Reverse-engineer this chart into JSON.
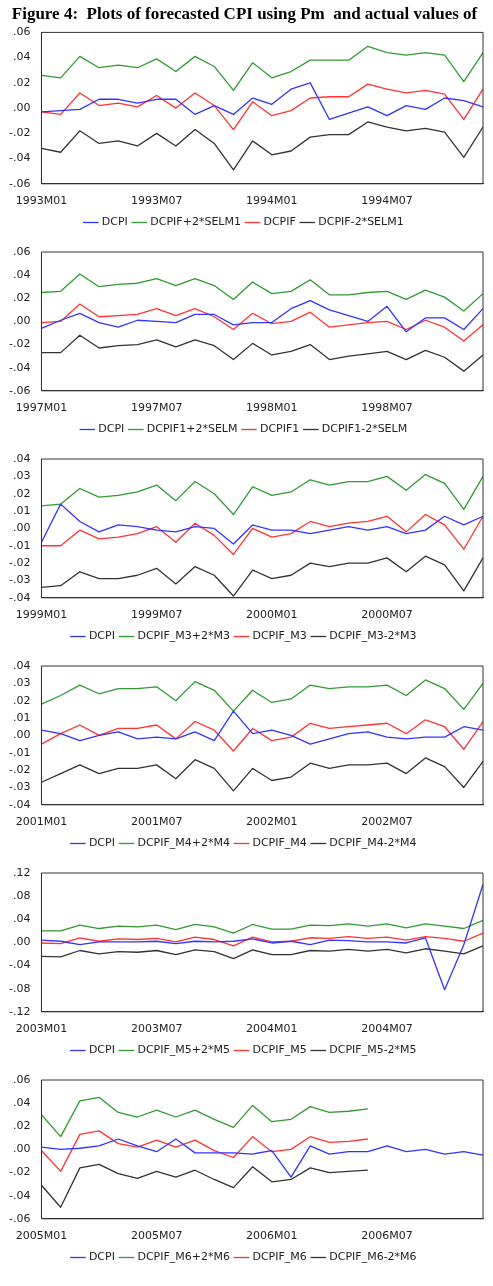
{
  "chart_data": [
    {
      "type": "line",
      "title": "Figure 4:  Plots of forecasted CPI using Pm  and actual values of",
      "categories": [
        "1993M01",
        null,
        null,
        null,
        null,
        null,
        "1993M07",
        null,
        null,
        null,
        null,
        null,
        "1994M01",
        null,
        null,
        null,
        null,
        null,
        "1994M07",
        null,
        null,
        null,
        null,
        null
      ],
      "ylim": [
        -0.06,
        0.06
      ],
      "yticks": [
        {
          "value": -0.06,
          "label": "-.06"
        },
        {
          "value": -0.04,
          "label": "-.04"
        },
        {
          "value": -0.02,
          "label": "-.02"
        },
        {
          "value": 0,
          "label": ".00"
        },
        {
          "value": 0.02,
          "label": ".02"
        },
        {
          "value": 0.04,
          "label": ".04"
        },
        {
          "value": 0.06,
          "label": ".06"
        }
      ],
      "legend": "bottom",
      "marker": "none",
      "series": [
        {
          "name": "DCPI",
          "color": "#3333ff",
          "values": [
            -0.003,
            -0.002,
            -0.001,
            0.007,
            0.007,
            0.004,
            0.007,
            0.007,
            -0.005,
            0.002,
            -0.005,
            0.008,
            0.003,
            0.015,
            0.02,
            -0.009,
            -0.004,
            0.001,
            -0.006,
            0.002,
            -0.001,
            0.008,
            0.006,
            0.001
          ]
        },
        {
          "name": "DCPIF+2*SELM1",
          "color": "#339933",
          "values": [
            0.026,
            0.024,
            0.041,
            0.032,
            0.034,
            0.032,
            0.039,
            0.029,
            0.041,
            0.033,
            0.014,
            0.036,
            0.024,
            0.029,
            0.038,
            0.038,
            0.038,
            0.049,
            0.044,
            0.042,
            0.044,
            0.042,
            0.021,
            0.044
          ]
        },
        {
          "name": "DCPIF",
          "color": "#ff3333",
          "values": [
            -0.003,
            -0.005,
            0.012,
            0.002,
            0.004,
            0.001,
            0.01,
            0.0,
            0.012,
            0.002,
            -0.017,
            0.005,
            -0.006,
            -0.002,
            0.008,
            0.009,
            0.009,
            0.019,
            0.015,
            0.012,
            0.014,
            0.011,
            -0.009,
            0.015
          ]
        },
        {
          "name": "DCPIF-2*SELM1",
          "color": "#333333",
          "values": [
            -0.032,
            -0.035,
            -0.018,
            -0.028,
            -0.026,
            -0.03,
            -0.02,
            -0.03,
            -0.017,
            -0.028,
            -0.049,
            -0.026,
            -0.037,
            -0.034,
            -0.023,
            -0.021,
            -0.021,
            -0.011,
            -0.015,
            -0.018,
            -0.016,
            -0.019,
            -0.039,
            -0.015
          ]
        }
      ]
    },
    {
      "type": "line",
      "categories": [
        "1997M01",
        null,
        null,
        null,
        null,
        null,
        "1997M07",
        null,
        null,
        null,
        null,
        null,
        "1998M01",
        null,
        null,
        null,
        null,
        null,
        "1998M07",
        null,
        null,
        null,
        null,
        null
      ],
      "ylim": [
        -0.06,
        0.06
      ],
      "yticks": [
        {
          "value": -0.06,
          "label": "-.06"
        },
        {
          "value": -0.04,
          "label": "-.04"
        },
        {
          "value": -0.02,
          "label": "-.02"
        },
        {
          "value": 0,
          "label": ".00"
        },
        {
          "value": 0.02,
          "label": ".02"
        },
        {
          "value": 0.04,
          "label": ".04"
        },
        {
          "value": 0.06,
          "label": ".06"
        }
      ],
      "legend": "bottom",
      "marker": "none",
      "series": [
        {
          "name": "DCPI",
          "color": "#3333ff",
          "values": [
            -0.006,
            0.001,
            0.007,
            -0.001,
            -0.005,
            0.001,
            0.0,
            -0.001,
            0.006,
            0.006,
            -0.003,
            -0.001,
            -0.001,
            0.011,
            0.018,
            0.01,
            0.005,
            0.0,
            0.013,
            -0.009,
            0.003,
            0.003,
            -0.007,
            0.011
          ]
        },
        {
          "name": "DCPIF1+2*SELM",
          "color": "#339933",
          "values": [
            0.025,
            0.026,
            0.041,
            0.03,
            0.032,
            0.033,
            0.037,
            0.031,
            0.037,
            0.031,
            0.019,
            0.034,
            0.024,
            0.026,
            0.036,
            0.023,
            0.023,
            0.025,
            0.026,
            0.019,
            0.027,
            0.021,
            0.009,
            0.024
          ]
        },
        {
          "name": "DCPIF1",
          "color": "#ff3333",
          "values": [
            -0.001,
            0.0,
            0.015,
            0.004,
            0.005,
            0.006,
            0.011,
            0.005,
            0.011,
            0.004,
            -0.007,
            0.007,
            -0.002,
            0.0,
            0.008,
            -0.005,
            -0.003,
            -0.001,
            0.0,
            -0.007,
            0.001,
            -0.005,
            -0.017,
            -0.003
          ]
        },
        {
          "name": "DCPIF1-2*SELM",
          "color": "#333333",
          "values": [
            -0.027,
            -0.027,
            -0.012,
            -0.023,
            -0.021,
            -0.02,
            -0.016,
            -0.022,
            -0.016,
            -0.021,
            -0.033,
            -0.019,
            -0.029,
            -0.026,
            -0.02,
            -0.033,
            -0.03,
            -0.028,
            -0.026,
            -0.033,
            -0.025,
            -0.031,
            -0.043,
            -0.029
          ]
        }
      ]
    },
    {
      "type": "line",
      "categories": [
        "1999M01",
        null,
        null,
        null,
        null,
        null,
        "1999M07",
        null,
        null,
        null,
        null,
        null,
        "2000M01",
        null,
        null,
        null,
        null,
        null,
        "2000M07",
        null,
        null,
        null,
        null,
        null
      ],
      "ylim": [
        -0.04,
        0.04
      ],
      "yticks": [
        {
          "value": -0.04,
          "label": "-.04"
        },
        {
          "value": -0.03,
          "label": "-.03"
        },
        {
          "value": -0.02,
          "label": "-.02"
        },
        {
          "value": -0.01,
          "label": "-.01"
        },
        {
          "value": 0,
          "label": ".00"
        },
        {
          "value": 0.01,
          "label": ".01"
        },
        {
          "value": 0.02,
          "label": ".02"
        },
        {
          "value": 0.03,
          "label": ".03"
        },
        {
          "value": 0.04,
          "label": ".04"
        }
      ],
      "legend": "bottom",
      "marker": "none",
      "series": [
        {
          "name": "DCPI",
          "color": "#3333ff",
          "values": [
            -0.008,
            0.014,
            0.004,
            -0.002,
            0.002,
            0.001,
            -0.001,
            -0.002,
            0.001,
            0.0,
            -0.009,
            0.002,
            -0.001,
            -0.001,
            -0.003,
            -0.001,
            0.001,
            -0.001,
            0.001,
            -0.003,
            -0.001,
            0.007,
            0.002,
            0.007
          ]
        },
        {
          "name": "DCPIF_M3+2*M3",
          "color": "#339933",
          "values": [
            0.013,
            0.014,
            0.023,
            0.018,
            0.019,
            0.021,
            0.025,
            0.016,
            0.027,
            0.02,
            0.008,
            0.024,
            0.019,
            0.021,
            0.028,
            0.025,
            0.027,
            0.027,
            0.03,
            0.022,
            0.031,
            0.026,
            0.011,
            0.03
          ]
        },
        {
          "name": "DCPIF_M3",
          "color": "#ff3333",
          "values": [
            -0.01,
            -0.01,
            -0.001,
            -0.006,
            -0.005,
            -0.003,
            0.001,
            -0.008,
            0.003,
            -0.004,
            -0.015,
            0.0,
            -0.005,
            -0.003,
            0.004,
            0.001,
            0.003,
            0.004,
            0.007,
            -0.002,
            0.008,
            0.002,
            -0.012,
            0.007
          ]
        },
        {
          "name": "DCPIF_M3-2*M3",
          "color": "#333333",
          "values": [
            -0.034,
            -0.033,
            -0.025,
            -0.029,
            -0.029,
            -0.027,
            -0.023,
            -0.032,
            -0.022,
            -0.027,
            -0.039,
            -0.024,
            -0.029,
            -0.027,
            -0.02,
            -0.022,
            -0.02,
            -0.02,
            -0.017,
            -0.025,
            -0.016,
            -0.021,
            -0.036,
            -0.017
          ]
        }
      ]
    },
    {
      "type": "line",
      "categories": [
        "2001M01",
        null,
        null,
        null,
        null,
        null,
        "2001M07",
        null,
        null,
        null,
        null,
        null,
        "2002M01",
        null,
        null,
        null,
        null,
        null,
        "2002M07",
        null,
        null,
        null,
        null,
        null
      ],
      "ylim": [
        -0.04,
        0.04
      ],
      "yticks": [
        {
          "value": -0.04,
          "label": "-.04"
        },
        {
          "value": -0.03,
          "label": "-.03"
        },
        {
          "value": -0.02,
          "label": "-.02"
        },
        {
          "value": -0.01,
          "label": "-.01"
        },
        {
          "value": 0,
          "label": ".00"
        },
        {
          "value": 0.01,
          "label": ".01"
        },
        {
          "value": 0.02,
          "label": ".02"
        },
        {
          "value": 0.03,
          "label": ".03"
        },
        {
          "value": 0.04,
          "label": ".04"
        }
      ],
      "legend": "bottom",
      "marker": "none",
      "series": [
        {
          "name": "DCPI",
          "color": "#3333ff",
          "values": [
            0.003,
            0.001,
            -0.003,
            0.0,
            0.002,
            -0.002,
            -0.001,
            -0.002,
            0.002,
            -0.003,
            0.014,
            0.001,
            0.003,
            0.0,
            -0.005,
            -0.002,
            0.001,
            0.002,
            -0.001,
            -0.002,
            -0.001,
            -0.001,
            0.005,
            0.003
          ]
        },
        {
          "name": "DCPIF_M4+2*M4",
          "color": "#339933",
          "values": [
            0.018,
            0.023,
            0.029,
            0.024,
            0.027,
            0.027,
            0.028,
            0.02,
            0.031,
            0.026,
            0.014,
            0.026,
            0.019,
            0.021,
            0.029,
            0.027,
            0.028,
            0.028,
            0.029,
            0.023,
            0.032,
            0.027,
            0.015,
            0.03
          ]
        },
        {
          "name": "DCPIF_M4",
          "color": "#ff3333",
          "values": [
            -0.005,
            0.001,
            0.006,
            0.0,
            0.004,
            0.004,
            0.006,
            -0.002,
            0.008,
            0.003,
            -0.009,
            0.004,
            -0.003,
            -0.001,
            0.007,
            0.004,
            0.005,
            0.006,
            0.007,
            0.001,
            0.009,
            0.005,
            -0.008,
            0.008
          ]
        },
        {
          "name": "DCPIF_M4-2*M4",
          "color": "#333333",
          "values": [
            -0.027,
            -0.022,
            -0.017,
            -0.022,
            -0.019,
            -0.019,
            -0.017,
            -0.025,
            -0.014,
            -0.019,
            -0.032,
            -0.019,
            -0.026,
            -0.024,
            -0.016,
            -0.019,
            -0.017,
            -0.017,
            -0.016,
            -0.022,
            -0.013,
            -0.018,
            -0.03,
            -0.015
          ]
        }
      ]
    },
    {
      "type": "line",
      "categories": [
        "2003M01",
        null,
        null,
        null,
        null,
        null,
        "2003M07",
        null,
        null,
        null,
        null,
        null,
        "2004M01",
        null,
        null,
        null,
        null,
        null,
        "2004M07",
        null,
        null,
        null,
        null,
        null
      ],
      "ylim": [
        -0.12,
        0.12
      ],
      "yticks": [
        {
          "value": -0.12,
          "label": "-.12"
        },
        {
          "value": -0.08,
          "label": "-.08"
        },
        {
          "value": -0.04,
          "label": "-.04"
        },
        {
          "value": 0,
          "label": ".00"
        },
        {
          "value": 0.04,
          "label": ".04"
        },
        {
          "value": 0.08,
          "label": ".08"
        },
        {
          "value": 0.12,
          "label": ".12"
        }
      ],
      "legend": "bottom",
      "marker": "none",
      "series": [
        {
          "name": "DCPI",
          "color": "#3333ff",
          "values": [
            0.004,
            0.002,
            -0.004,
            0.001,
            0.001,
            0.001,
            0.002,
            -0.002,
            0.002,
            0.001,
            0.002,
            0.006,
            -0.001,
            0.002,
            -0.004,
            0.004,
            0.003,
            0.001,
            0.001,
            -0.001,
            0.008,
            -0.082,
            -0.004,
            0.1
          ]
        },
        {
          "name": "DCPIF_M5+2*M5",
          "color": "#339933",
          "values": [
            0.02,
            0.02,
            0.03,
            0.024,
            0.028,
            0.027,
            0.03,
            0.022,
            0.031,
            0.027,
            0.016,
            0.031,
            0.023,
            0.023,
            0.03,
            0.029,
            0.032,
            0.028,
            0.032,
            0.025,
            0.032,
            0.028,
            0.024,
            0.038
          ]
        },
        {
          "name": "DCPIF_M5",
          "color": "#ff3333",
          "values": [
            -0.001,
            -0.002,
            0.008,
            0.002,
            0.006,
            0.005,
            0.007,
            0.001,
            0.009,
            0.005,
            -0.006,
            0.009,
            0.001,
            0.002,
            0.008,
            0.007,
            0.01,
            0.007,
            0.009,
            0.004,
            0.01,
            0.007,
            0.002,
            0.016
          ]
        },
        {
          "name": "DCPIF_M5-2*M5",
          "color": "#333333",
          "values": [
            -0.024,
            -0.025,
            -0.014,
            -0.02,
            -0.016,
            -0.017,
            -0.014,
            -0.021,
            -0.013,
            -0.016,
            -0.028,
            -0.013,
            -0.021,
            -0.021,
            -0.014,
            -0.015,
            -0.012,
            -0.015,
            -0.012,
            -0.018,
            -0.011,
            -0.015,
            -0.02,
            -0.006
          ]
        }
      ]
    },
    {
      "type": "line",
      "categories": [
        "2005M01",
        null,
        null,
        null,
        null,
        null,
        "2005M07",
        null,
        null,
        null,
        null,
        null,
        "2006M01",
        null,
        null,
        null,
        null,
        null,
        "2006M07",
        null,
        null,
        null,
        null,
        null
      ],
      "ylim": [
        -0.06,
        0.06
      ],
      "yticks": [
        {
          "value": -0.06,
          "label": "-.06"
        },
        {
          "value": -0.04,
          "label": "-.04"
        },
        {
          "value": -0.02,
          "label": "-.02"
        },
        {
          "value": 0,
          "label": ".00"
        },
        {
          "value": 0.02,
          "label": ".02"
        },
        {
          "value": 0.04,
          "label": ".04"
        },
        {
          "value": 0.06,
          "label": ".06"
        }
      ],
      "legend": "bottom",
      "marker": "none",
      "series": [
        {
          "name": "DCPI",
          "color": "#3333ff",
          "values": [
            0.002,
            0.0,
            0.001,
            0.003,
            0.009,
            0.003,
            -0.002,
            0.009,
            -0.003,
            -0.003,
            -0.003,
            -0.004,
            -0.001,
            -0.024,
            0.003,
            -0.004,
            -0.002,
            -0.002,
            0.003,
            -0.002,
            0.0,
            -0.004,
            -0.002,
            -0.005
          ]
        },
        {
          "name": "DCPIF_M6+2*M6",
          "color": "#339933",
          "values": [
            0.03,
            0.011,
            0.042,
            0.045,
            0.032,
            0.028,
            0.034,
            0.028,
            0.034,
            0.026,
            0.019,
            0.038,
            0.024,
            0.026,
            0.037,
            0.032,
            0.033,
            0.035,
            null,
            null,
            null,
            null,
            null,
            null
          ]
        },
        {
          "name": "DCPIF_M6",
          "color": "#ff3333",
          "values": [
            -0.001,
            -0.019,
            0.013,
            0.016,
            0.005,
            0.002,
            0.008,
            0.002,
            0.008,
            -0.001,
            -0.007,
            0.011,
            -0.002,
            0.0,
            0.011,
            0.006,
            0.007,
            0.009,
            null,
            null,
            null,
            null,
            null,
            null
          ]
        },
        {
          "name": "DCPIF_M6-2*M6",
          "color": "#333333",
          "values": [
            -0.031,
            -0.05,
            -0.016,
            -0.013,
            -0.021,
            -0.025,
            -0.019,
            -0.024,
            -0.018,
            -0.026,
            -0.033,
            -0.015,
            -0.028,
            -0.026,
            -0.016,
            -0.02,
            -0.019,
            -0.018,
            null,
            null,
            null,
            null,
            null,
            null
          ]
        }
      ]
    }
  ]
}
